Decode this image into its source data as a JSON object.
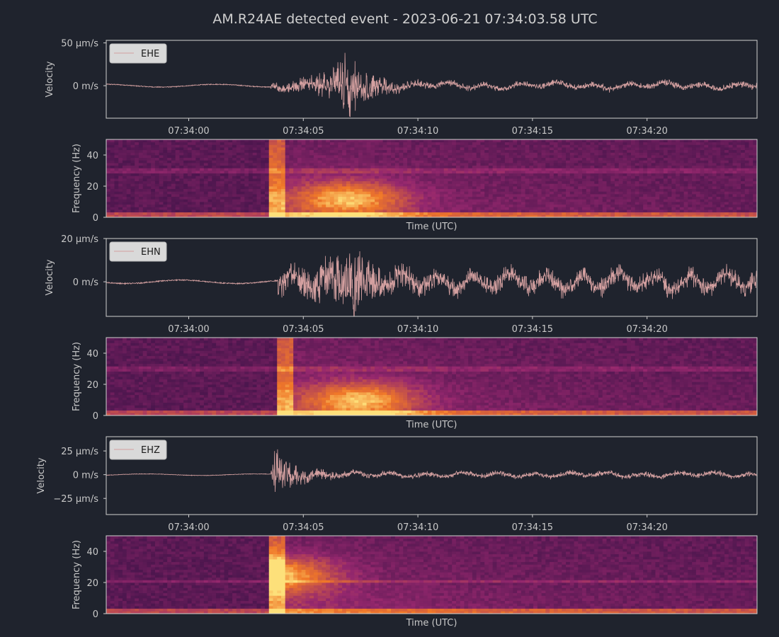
{
  "title": "AM.R24AE detected event - 2023-06-21 07:34:03.58 UTC",
  "colors": {
    "background": "#1f232d",
    "trace": "#d4a0a0",
    "spectro_low": "#1a0a38",
    "spectro_high": "#fde07a"
  },
  "x_ticks": [
    "07:34:00",
    "07:34:05",
    "07:34:10",
    "07:34:15",
    "07:34:20"
  ],
  "x_tick_values": [
    0,
    5,
    10,
    15,
    20
  ],
  "x_range": [
    -3.6,
    24.8
  ],
  "chart_data": [
    {
      "type": "line",
      "channel": "EHE",
      "ylabel": "Velocity",
      "yticks": [
        "50 µm/s",
        "0 m/s"
      ],
      "ytick_values": [
        50,
        0
      ],
      "ylim": [
        -38,
        53
      ],
      "onset": 3.58,
      "peak_time": 7.0,
      "peak": 43,
      "noise": 2,
      "coda_amp": 4,
      "legend": "EHE"
    },
    {
      "type": "heatmap",
      "channel": "EHE",
      "xlabel": "Time (UTC)",
      "ylabel": "Frequency (Hz)",
      "yticks": [
        "40",
        "20",
        "0"
      ],
      "ytick_values": [
        40,
        20,
        0
      ],
      "ylim": [
        0,
        50
      ],
      "onset": 3.58,
      "energy_peak_time": 7.0,
      "energy_peak_freq": 12
    },
    {
      "type": "line",
      "channel": "EHN",
      "ylabel": "Velocity",
      "yticks": [
        "20 µm/s",
        "0 m/s"
      ],
      "ytick_values": [
        20,
        0
      ],
      "ylim": [
        -16,
        20
      ],
      "onset": 3.9,
      "peak_time": 7.2,
      "peak": 20,
      "noise": 1,
      "coda_amp": 5,
      "legend": "EHN"
    },
    {
      "type": "heatmap",
      "channel": "EHN",
      "xlabel": "Time (UTC)",
      "ylabel": "Frequency (Hz)",
      "yticks": [
        "40",
        "20",
        "0"
      ],
      "ytick_values": [
        40,
        20,
        0
      ],
      "ylim": [
        0,
        50
      ],
      "onset": 3.9,
      "energy_peak_time": 7.5,
      "energy_peak_freq": 10
    },
    {
      "type": "line",
      "channel": "EHZ",
      "ylabel": "Velocity",
      "yticks": [
        "25 µm/s",
        "0 m/s",
        "−25 µm/s"
      ],
      "ytick_values": [
        25,
        0,
        -25
      ],
      "ylim": [
        -42,
        40
      ],
      "onset": 3.58,
      "peak_time": 3.7,
      "peak": 32,
      "noise": 1,
      "coda_amp": 3,
      "legend": "EHZ"
    },
    {
      "type": "heatmap",
      "channel": "EHZ",
      "xlabel": "Time (UTC)",
      "ylabel": "Frequency (Hz)",
      "yticks": [
        "40",
        "20",
        "0"
      ],
      "ytick_values": [
        40,
        20,
        0
      ],
      "ylim": [
        0,
        50
      ],
      "onset": 3.58,
      "energy_peak_time": 4.0,
      "energy_peak_freq": 25
    }
  ]
}
